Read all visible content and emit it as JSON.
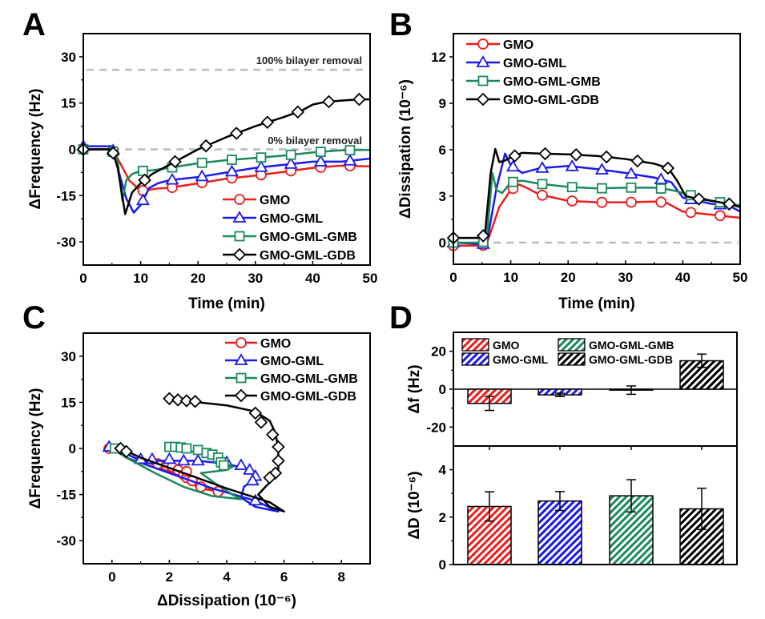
{
  "figure": {
    "panel_letters": [
      "A",
      "B",
      "C",
      "D"
    ]
  },
  "series_styles": [
    {
      "name": "GMO",
      "color": "#ee1c1c",
      "marker": "circle"
    },
    {
      "name": "GMO-GML",
      "color": "#1a1aee",
      "marker": "triangle"
    },
    {
      "name": "GMO-GML-GMB",
      "color": "#1a8a5a",
      "marker": "square"
    },
    {
      "name": "GMO-GML-GDB",
      "color": "#000000",
      "marker": "diamond"
    }
  ],
  "chart_data": [
    {
      "id": "A",
      "type": "line",
      "title": "",
      "xlabel": "Time (min)",
      "ylabel": "ΔFrequency (Hz)",
      "xlim": [
        0,
        50
      ],
      "ylim": [
        -37.5,
        37.5
      ],
      "xticks": [
        0,
        10,
        20,
        30,
        40,
        50
      ],
      "yticks": [
        -30,
        -15,
        0,
        15,
        30
      ],
      "grid": false,
      "legend_position": "bottom-right",
      "annotations": [
        {
          "text": "100% bilayer removal",
          "y": 25.8,
          "style": "dashed-gray"
        },
        {
          "text": "0% bilayer removal",
          "y": 0,
          "style": "dashed-gray"
        }
      ],
      "series": [
        {
          "name": "GMO",
          "x": [
            0,
            5,
            6,
            8,
            10,
            11,
            13,
            15,
            20,
            25,
            30,
            35,
            40,
            45,
            50
          ],
          "y": [
            0,
            0,
            -3,
            -10,
            -13.5,
            -13.2,
            -12.7,
            -12.5,
            -11,
            -9.5,
            -8.5,
            -7.3,
            -6,
            -5.3,
            -5.5
          ],
          "marker_x": [
            0,
            5.2,
            10.4,
            15.5,
            20.7,
            25.9,
            31,
            36.2,
            41.4,
            46.5
          ]
        },
        {
          "name": "GMO-GML",
          "x": [
            0,
            5,
            6,
            7.5,
            8.8,
            10,
            11.5,
            13,
            15,
            20,
            25,
            30,
            35,
            40,
            45,
            50
          ],
          "y": [
            1,
            1,
            -6,
            -16,
            -20.5,
            -18,
            -12.5,
            -11,
            -10,
            -9,
            -7.5,
            -6,
            -5,
            -4,
            -4,
            -3
          ],
          "marker_x": [
            0,
            5.2,
            10.4,
            15.5,
            20.7,
            25.9,
            31,
            36.2,
            41.4,
            46.5
          ]
        },
        {
          "name": "GMO-GML-GMB",
          "x": [
            0,
            5,
            6,
            6.8,
            7.5,
            8.5,
            10,
            12,
            15,
            20,
            25,
            30,
            35,
            40,
            45,
            50
          ],
          "y": [
            0,
            0,
            -4,
            -16.5,
            -10,
            -8,
            -7,
            -6.8,
            -6,
            -4.5,
            -3.5,
            -2.8,
            -2,
            -1,
            -0.3,
            -0.2
          ],
          "marker_x": [
            0,
            5.2,
            10.4,
            15.5,
            20.7,
            25.9,
            31,
            36.2,
            41.4,
            46.5
          ]
        },
        {
          "name": "GMO-GML-GDB",
          "x": [
            0,
            5,
            6,
            7.3,
            8.5,
            10,
            12,
            15,
            20,
            25,
            30,
            35,
            38,
            40,
            42,
            45,
            48,
            50
          ],
          "y": [
            0,
            0,
            -6,
            -21,
            -14,
            -11,
            -8,
            -5,
            0,
            4,
            7.5,
            10.5,
            12.5,
            14.5,
            15.3,
            15.8,
            16.2,
            16.2
          ],
          "marker_x": [
            0,
            5.2,
            10.7,
            16,
            21.4,
            26.7,
            32.1,
            37.4,
            42.8,
            48.1
          ]
        }
      ]
    },
    {
      "id": "B",
      "type": "line",
      "title": "",
      "xlabel": "Time (min)",
      "ylabel": "ΔDissipation (10⁻⁶)",
      "xlim": [
        0,
        50
      ],
      "ylim": [
        -1.4,
        13.5
      ],
      "xticks": [
        0,
        10,
        20,
        30,
        40,
        50
      ],
      "yticks": [
        0,
        3,
        6,
        9,
        12
      ],
      "grid": false,
      "legend_position": "top-left",
      "annotations": [
        {
          "text": "",
          "y": 0,
          "style": "dashed-gray"
        }
      ],
      "series": [
        {
          "name": "GMO",
          "x": [
            0,
            5,
            5.8,
            8,
            10,
            11.5,
            13,
            15,
            20,
            25,
            30,
            35,
            37,
            40,
            45,
            50
          ],
          "y": [
            -0.2,
            -0.2,
            -0.1,
            2.3,
            3.4,
            3.75,
            3.5,
            3.1,
            2.7,
            2.6,
            2.6,
            2.65,
            2.6,
            2.0,
            1.8,
            1.6
          ],
          "marker_x": [
            0,
            5.2,
            10.4,
            15.5,
            20.7,
            25.9,
            31,
            36.2,
            41.4,
            46.5
          ]
        },
        {
          "name": "GMO-GML",
          "x": [
            0,
            5,
            5.8,
            7.5,
            9,
            10,
            12,
            15,
            20,
            25,
            30,
            35,
            38,
            40,
            45,
            48,
            50
          ],
          "y": [
            0,
            -0.1,
            -0.1,
            3.5,
            5.75,
            5,
            4.5,
            4.8,
            4.95,
            4.75,
            4.5,
            4.2,
            3.9,
            2.9,
            2.5,
            2.4,
            2.0
          ],
          "marker_x": [
            0,
            5.2,
            10.4,
            15.5,
            20.7,
            25.9,
            31,
            36.2,
            41.4,
            46.5
          ]
        },
        {
          "name": "GMO-GML-GMB",
          "x": [
            0,
            5,
            5.8,
            6.8,
            7.5,
            8.5,
            10,
            12,
            15,
            20,
            25,
            30,
            35,
            38,
            40,
            45,
            50
          ],
          "y": [
            0,
            0,
            0.2,
            4.5,
            3.4,
            3.2,
            3.9,
            4.0,
            3.8,
            3.6,
            3.5,
            3.55,
            3.55,
            3.4,
            3.2,
            2.7,
            2.4
          ],
          "marker_x": [
            0,
            5.2,
            10.4,
            15.5,
            20.7,
            25.9,
            31,
            36.2,
            41.4,
            46.5
          ]
        },
        {
          "name": "GMO-GML-GDB",
          "x": [
            0,
            4.5,
            5.5,
            6.5,
            7.3,
            8,
            9,
            10,
            12,
            15,
            20,
            25,
            30,
            35,
            37.5,
            39,
            40.5,
            43,
            45,
            48,
            50
          ],
          "y": [
            0.3,
            0.3,
            0.5,
            4.5,
            6.05,
            5.2,
            5.3,
            5.5,
            5.8,
            5.75,
            5.7,
            5.6,
            5.4,
            5.1,
            4.8,
            4.0,
            3.0,
            2.8,
            2.7,
            2.5,
            2.3
          ],
          "marker_x": [
            0,
            5.2,
            10.7,
            16,
            21.4,
            26.7,
            32.1,
            37.4,
            42.8,
            48.1
          ]
        }
      ]
    },
    {
      "id": "C",
      "type": "line",
      "title": "",
      "xlabel": "ΔDissipation (10⁻⁶)",
      "ylabel": "ΔFrequency (Hz)",
      "xlim": [
        -1,
        9
      ],
      "ylim": [
        -37.5,
        37.5
      ],
      "xticks": [
        0,
        2,
        4,
        6,
        8
      ],
      "yticks": [
        -30,
        -15,
        0,
        15,
        30
      ],
      "grid": false,
      "legend_position": "top-right",
      "series": [
        {
          "name": "GMO",
          "x": [
            -0.3,
            0,
            0.8,
            1.5,
            2.2,
            3.0,
            3.6,
            3.8,
            3.0,
            2.6,
            2.6,
            2.6,
            2.0,
            1.5
          ],
          "y": [
            0,
            0,
            -3,
            -5.5,
            -8.5,
            -11.5,
            -13.5,
            -14,
            -13,
            -9.5,
            -8,
            -7,
            -6,
            -5
          ],
          "markers": [
            [
              -0.1,
              0
            ],
            [
              1.6,
              -5
            ],
            [
              1.9,
              -5.5
            ],
            [
              2.1,
              -6
            ],
            [
              2.3,
              -7
            ],
            [
              2.5,
              -8.5
            ],
            [
              2.6,
              -9.5
            ],
            [
              2.6,
              -7.5
            ],
            [
              2.8,
              -10.5
            ],
            [
              3.1,
              -12.5
            ],
            [
              3.7,
              -14
            ]
          ]
        },
        {
          "name": "GMO-GML",
          "x": [
            -0.1,
            0.5,
            2,
            3.5,
            5,
            5.8,
            5.0,
            4.5,
            4.6,
            5.1,
            4.8,
            4.0,
            3.0,
            2.0,
            1.0,
            -0.1
          ],
          "y": [
            1,
            -3,
            -8,
            -13,
            -17,
            -20.5,
            -19,
            -16,
            -12.5,
            -9,
            -7,
            -5,
            -4,
            -4,
            -4,
            1
          ],
          "markers": [
            [
              -0.1,
              0.5
            ],
            [
              1.0,
              -3.5
            ],
            [
              1.4,
              -3.5
            ],
            [
              2.0,
              -3.5
            ],
            [
              2.5,
              -4
            ],
            [
              3.0,
              -4
            ],
            [
              4.0,
              -4.5
            ],
            [
              4.5,
              -5.5
            ],
            [
              4.8,
              -7
            ],
            [
              5.0,
              -9
            ],
            [
              4.9,
              -10.5
            ],
            [
              5.0,
              -17
            ]
          ]
        },
        {
          "name": "GMO-GML-GMB",
          "x": [
            0,
            0.5,
            1.5,
            2.5,
            3.5,
            4.5,
            4.2,
            3.7,
            3.1,
            4.0,
            4.2,
            3.8,
            3.4,
            2.8,
            2.0,
            2.0
          ],
          "y": [
            0,
            -3,
            -8,
            -12.5,
            -15.5,
            -16.5,
            -15,
            -12,
            -8,
            -7,
            -6,
            -4,
            -2,
            -1,
            0,
            0
          ],
          "markers": [
            [
              0.1,
              0
            ],
            [
              2.0,
              0.5
            ],
            [
              2.2,
              0.5
            ],
            [
              2.4,
              0.3
            ],
            [
              2.6,
              0
            ],
            [
              3.0,
              -0.5
            ],
            [
              3.3,
              -1.5
            ],
            [
              3.5,
              -2
            ],
            [
              3.7,
              -3
            ],
            [
              3.8,
              -4.5
            ],
            [
              3.9,
              -5.5
            ]
          ]
        },
        {
          "name": "GMO-GML-GDB",
          "x": [
            0.3,
            1,
            2.5,
            4,
            5.5,
            6.0,
            5.5,
            5.1,
            5.5,
            5.8,
            5.8,
            5.7,
            5.5,
            5.0,
            4.0,
            3.0,
            2.0
          ],
          "y": [
            0,
            -3,
            -8,
            -13,
            -17.5,
            -20.5,
            -19,
            -15,
            -11,
            -7,
            0,
            5,
            9,
            12,
            14,
            15,
            16
          ],
          "markers": [
            [
              0.3,
              0
            ],
            [
              0.5,
              -1
            ],
            [
              2.0,
              16.2
            ],
            [
              2.3,
              15.8
            ],
            [
              2.6,
              15.5
            ],
            [
              2.9,
              15.3
            ],
            [
              5.0,
              11.5
            ],
            [
              5.2,
              8.5
            ],
            [
              5.6,
              4.5
            ],
            [
              5.8,
              0.5
            ],
            [
              5.8,
              -4
            ],
            [
              5.7,
              -8
            ],
            [
              5.5,
              -9.5
            ]
          ]
        }
      ]
    },
    {
      "id": "D",
      "type": "bar",
      "title": "",
      "categories": [
        "GMO",
        "GMO-GML",
        "GMO-GML-GMB",
        "GMO-GML-GDB"
      ],
      "legend_position": "top-left",
      "subplots": [
        {
          "ylabel": "Δf (Hz)",
          "ylim": [
            -30,
            30
          ],
          "yticks": [
            -20,
            0,
            20
          ],
          "values": [
            -7.5,
            -3,
            -0.5,
            15
          ],
          "errors": [
            3.7,
            0.9,
            2.2,
            3.5
          ]
        },
        {
          "ylabel": "ΔD (10⁻⁶)",
          "ylim": [
            0,
            5
          ],
          "yticks": [
            0,
            2,
            4
          ],
          "values": [
            2.45,
            2.68,
            2.9,
            2.35
          ],
          "errors": [
            0.62,
            0.4,
            0.68,
            0.87
          ]
        }
      ]
    }
  ]
}
